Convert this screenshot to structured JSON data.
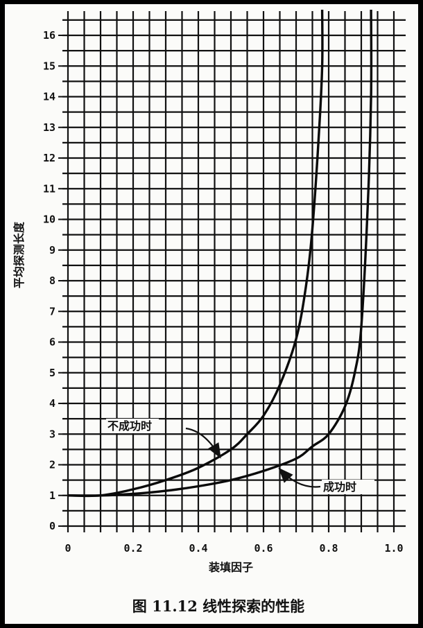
{
  "chart_data": {
    "type": "line",
    "title": "",
    "caption": "图 11.12    线性探索的性能",
    "xlabel": "装填因子",
    "ylabel": "平均探测长度",
    "xlim": [
      0,
      1.0
    ],
    "ylim": [
      0,
      16.5
    ],
    "grid": true,
    "x_ticks": [
      "0",
      "0.2",
      "0.4",
      "0.6",
      "0.8",
      "1.0"
    ],
    "y_ticks": [
      "0",
      "1",
      "2",
      "3",
      "4",
      "5",
      "6",
      "7",
      "8",
      "9",
      "10",
      "11",
      "12",
      "13",
      "14",
      "15",
      "16"
    ],
    "series": [
      {
        "name": "不成功时",
        "x": [
          0,
          0.1,
          0.2,
          0.3,
          0.4,
          0.5,
          0.55,
          0.6,
          0.65,
          0.7,
          0.73,
          0.75,
          0.77,
          0.78
        ],
        "values": [
          1.0,
          1.0,
          1.2,
          1.5,
          1.9,
          2.5,
          3.0,
          3.6,
          4.6,
          6.1,
          7.8,
          9.7,
          12.8,
          15.0
        ]
      },
      {
        "name": "成功时",
        "x": [
          0,
          0.1,
          0.2,
          0.3,
          0.4,
          0.5,
          0.6,
          0.7,
          0.75,
          0.8,
          0.85,
          0.88,
          0.9,
          0.92,
          0.93
        ],
        "values": [
          1.0,
          1.0,
          1.05,
          1.15,
          1.3,
          1.5,
          1.8,
          2.2,
          2.6,
          3.0,
          3.9,
          5.0,
          6.5,
          10.5,
          14.0
        ]
      }
    ],
    "annotations": [
      {
        "text": "不成功时",
        "series": 0,
        "point_x": 0.48
      },
      {
        "text": "成功时",
        "series": 1,
        "point_x": 0.64
      }
    ]
  }
}
